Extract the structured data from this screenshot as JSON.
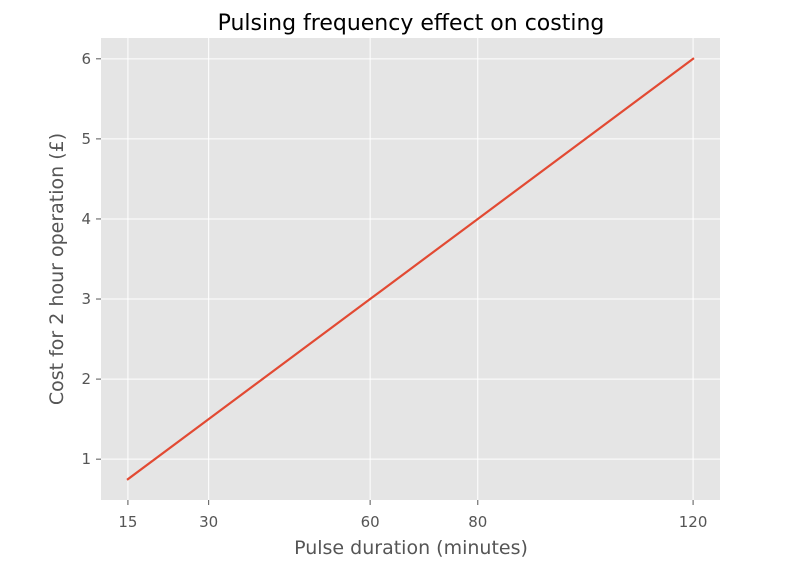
{
  "chart_data": {
    "type": "line",
    "title": "Pulsing frequency effect on costing",
    "xlabel": "Pulse duration (minutes)",
    "ylabel": "Cost for 2 hour operation (£)",
    "xticks": [
      15,
      30,
      60,
      80,
      120
    ],
    "xtick_labels": [
      "15",
      "30",
      "60",
      "80",
      "120"
    ],
    "yticks": [
      1,
      2,
      3,
      4,
      5,
      6
    ],
    "ytick_labels": [
      "1",
      "2",
      "3",
      "4",
      "5",
      "6"
    ],
    "xlim": [
      10,
      125
    ],
    "ylim": [
      0.49,
      6.26
    ],
    "grid": true,
    "series": [
      {
        "color": "#E24A33",
        "x": [
          15,
          30,
          60,
          80,
          120
        ],
        "y": [
          0.75,
          1.5,
          3.0,
          4.0,
          6.0
        ]
      }
    ]
  },
  "colors": {
    "plot_background": "#E5E5E5",
    "grid": "#FFFFFF",
    "line": "#E24A33",
    "tick_text": "#555555"
  }
}
